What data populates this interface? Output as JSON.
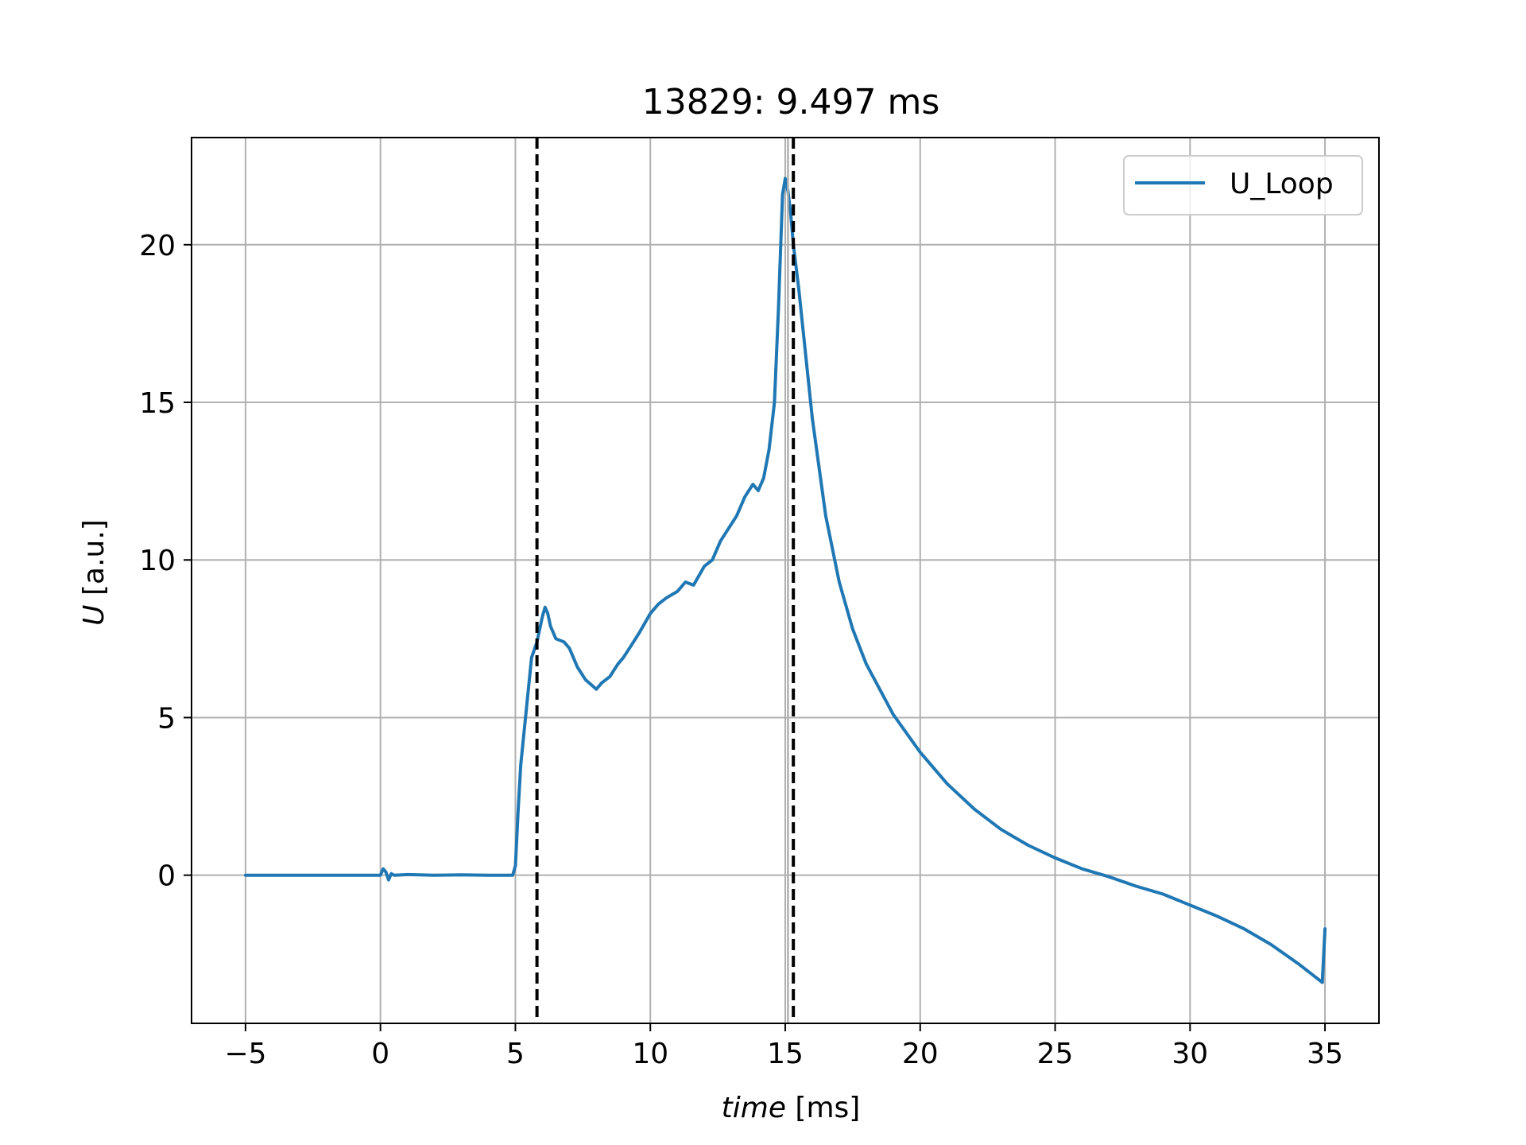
{
  "chart_data": {
    "type": "line",
    "title": "13829: 9.497 ms",
    "xlabel_italic": "time",
    "xlabel_unit": " [ms]",
    "ylabel_italic": "U",
    "ylabel_unit": " [a.u.]",
    "xlim": [
      -7,
      37
    ],
    "ylim": [
      -4.7,
      23.4
    ],
    "xticks": [
      -5,
      0,
      5,
      10,
      15,
      20,
      25,
      30,
      35
    ],
    "xtick_labels": [
      "−5",
      "0",
      "5",
      "10",
      "15",
      "20",
      "25",
      "30",
      "35"
    ],
    "yticks": [
      0,
      5,
      10,
      15,
      20
    ],
    "ytick_labels": [
      "0",
      "5",
      "10",
      "15",
      "20"
    ],
    "grid": true,
    "legend_placement": "top-right",
    "vlines_dashed": [
      5.8,
      15.3
    ],
    "vline_solid": 15.1,
    "series": [
      {
        "name": "U_Loop",
        "color": "#1f77b4",
        "x": [
          -5,
          0,
          0.1,
          0.2,
          0.3,
          0.4,
          0.5,
          1.0,
          2.0,
          3.0,
          4.0,
          4.9,
          5.0,
          5.1,
          5.2,
          5.4,
          5.6,
          5.8,
          6.0,
          6.1,
          6.2,
          6.3,
          6.5,
          6.8,
          7.0,
          7.3,
          7.6,
          8.0,
          8.2,
          8.5,
          8.8,
          9.0,
          9.3,
          9.6,
          10.0,
          10.3,
          10.6,
          11.0,
          11.3,
          11.6,
          12.0,
          12.3,
          12.6,
          12.9,
          13.2,
          13.5,
          13.8,
          14.0,
          14.2,
          14.4,
          14.6,
          14.75,
          14.9,
          15.0,
          15.1,
          15.2,
          15.3,
          15.5,
          16.0,
          16.5,
          17.0,
          17.5,
          18.0,
          19.0,
          20.0,
          21.0,
          22.0,
          23.0,
          24.0,
          25.0,
          26.0,
          27.0,
          28.0,
          29.0,
          30.0,
          31.0,
          32.0,
          33.0,
          34.0,
          34.9,
          35.0
        ],
        "y": [
          0,
          0,
          0.2,
          0.1,
          -0.15,
          0.05,
          0,
          0.02,
          0.0,
          0.01,
          0.0,
          0.0,
          0.3,
          2.0,
          3.5,
          5.2,
          6.9,
          7.4,
          8.2,
          8.5,
          8.3,
          7.9,
          7.5,
          7.4,
          7.2,
          6.6,
          6.2,
          5.9,
          6.1,
          6.3,
          6.7,
          6.9,
          7.3,
          7.7,
          8.3,
          8.6,
          8.8,
          9.0,
          9.3,
          9.2,
          9.8,
          10.0,
          10.6,
          11.0,
          11.4,
          12.0,
          12.4,
          12.2,
          12.6,
          13.5,
          15.0,
          18.0,
          21.6,
          22.1,
          21.7,
          21.0,
          20.0,
          18.6,
          14.5,
          11.4,
          9.3,
          7.8,
          6.7,
          5.1,
          3.9,
          2.9,
          2.1,
          1.45,
          0.95,
          0.55,
          0.2,
          -0.05,
          -0.35,
          -0.6,
          -0.95,
          -1.3,
          -1.7,
          -2.2,
          -2.8,
          -3.4,
          -1.7
        ]
      }
    ]
  }
}
